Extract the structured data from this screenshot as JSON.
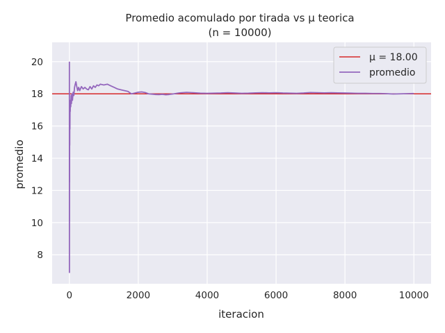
{
  "chart_data": {
    "type": "line",
    "title": "Promedio acomulado por tirada vs μ teorica",
    "subtitle": "(n = 10000)",
    "xlabel": "iteracion",
    "ylabel": "promedio",
    "xlim": [
      -500,
      10500
    ],
    "ylim": [
      6.2,
      21.2
    ],
    "xticks": [
      0,
      2000,
      4000,
      6000,
      8000,
      10000
    ],
    "xtick_labels": [
      "0",
      "2000",
      "4000",
      "6000",
      "8000",
      "10000"
    ],
    "yticks": [
      8,
      10,
      12,
      14,
      16,
      18,
      20
    ],
    "ytick_labels": [
      "8",
      "10",
      "12",
      "14",
      "16",
      "18",
      "20"
    ],
    "grid": true,
    "legend_position": "top-right",
    "reference_line": {
      "name": "μ = 18.00",
      "y": 18.0,
      "color": "#d62728"
    },
    "series": [
      {
        "name": "promedio",
        "color": "#9467bd",
        "points": [
          [
            1,
            20.0
          ],
          [
            2,
            6.9
          ],
          [
            3,
            13.2
          ],
          [
            4,
            10.1
          ],
          [
            5,
            15.0
          ],
          [
            6,
            12.5
          ],
          [
            8,
            16.4
          ],
          [
            10,
            14.8
          ],
          [
            13,
            17.1
          ],
          [
            16,
            15.8
          ],
          [
            20,
            17.4
          ],
          [
            25,
            16.9
          ],
          [
            30,
            17.6
          ],
          [
            40,
            17.2
          ],
          [
            50,
            17.9
          ],
          [
            60,
            17.4
          ],
          [
            75,
            18.0
          ],
          [
            90,
            17.6
          ],
          [
            110,
            18.1
          ],
          [
            130,
            17.9
          ],
          [
            150,
            18.4
          ],
          [
            170,
            18.6
          ],
          [
            190,
            18.75
          ],
          [
            210,
            18.5
          ],
          [
            240,
            18.2
          ],
          [
            270,
            18.4
          ],
          [
            300,
            18.2
          ],
          [
            350,
            18.45
          ],
          [
            400,
            18.3
          ],
          [
            450,
            18.4
          ],
          [
            500,
            18.3
          ],
          [
            550,
            18.25
          ],
          [
            600,
            18.45
          ],
          [
            650,
            18.3
          ],
          [
            700,
            18.5
          ],
          [
            750,
            18.4
          ],
          [
            800,
            18.55
          ],
          [
            850,
            18.5
          ],
          [
            900,
            18.6
          ],
          [
            1000,
            18.55
          ],
          [
            1100,
            18.6
          ],
          [
            1200,
            18.5
          ],
          [
            1300,
            18.4
          ],
          [
            1400,
            18.3
          ],
          [
            1500,
            18.25
          ],
          [
            1600,
            18.2
          ],
          [
            1700,
            18.15
          ],
          [
            1800,
            18.0
          ],
          [
            1900,
            18.05
          ],
          [
            2000,
            18.1
          ],
          [
            2100,
            18.12
          ],
          [
            2200,
            18.08
          ],
          [
            2300,
            18.0
          ],
          [
            2400,
            17.98
          ],
          [
            2500,
            17.96
          ],
          [
            2600,
            17.95
          ],
          [
            2700,
            17.97
          ],
          [
            2800,
            17.94
          ],
          [
            2900,
            17.96
          ],
          [
            3000,
            17.99
          ],
          [
            3200,
            18.06
          ],
          [
            3400,
            18.09
          ],
          [
            3600,
            18.07
          ],
          [
            3800,
            18.04
          ],
          [
            4000,
            18.03
          ],
          [
            4200,
            18.04
          ],
          [
            4400,
            18.05
          ],
          [
            4600,
            18.07
          ],
          [
            4800,
            18.05
          ],
          [
            5000,
            18.03
          ],
          [
            5200,
            18.04
          ],
          [
            5400,
            18.06
          ],
          [
            5600,
            18.07
          ],
          [
            5800,
            18.06
          ],
          [
            6000,
            18.07
          ],
          [
            6200,
            18.05
          ],
          [
            6400,
            18.04
          ],
          [
            6600,
            18.03
          ],
          [
            6800,
            18.05
          ],
          [
            7000,
            18.08
          ],
          [
            7200,
            18.07
          ],
          [
            7400,
            18.06
          ],
          [
            7600,
            18.07
          ],
          [
            7800,
            18.06
          ],
          [
            8000,
            18.05
          ],
          [
            8200,
            18.04
          ],
          [
            8400,
            18.03
          ],
          [
            8600,
            18.03
          ],
          [
            8800,
            18.02
          ],
          [
            9000,
            18.02
          ],
          [
            9200,
            18.01
          ],
          [
            9400,
            17.99
          ],
          [
            9600,
            18.0
          ],
          [
            9800,
            18.01
          ],
          [
            10000,
            18.02
          ]
        ]
      }
    ]
  }
}
